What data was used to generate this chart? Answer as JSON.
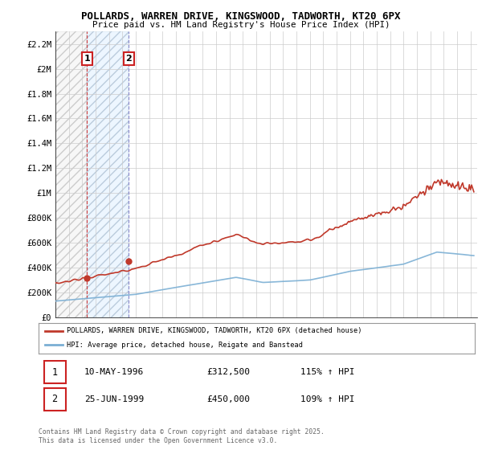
{
  "title": "POLLARDS, WARREN DRIVE, KINGSWOOD, TADWORTH, KT20 6PX",
  "subtitle": "Price paid vs. HM Land Registry's House Price Index (HPI)",
  "ylabel_ticks": [
    "£0",
    "£200K",
    "£400K",
    "£600K",
    "£800K",
    "£1M",
    "£1.2M",
    "£1.4M",
    "£1.6M",
    "£1.8M",
    "£2M",
    "£2.2M"
  ],
  "ylabel_values": [
    0,
    200000,
    400000,
    600000,
    800000,
    1000000,
    1200000,
    1400000,
    1600000,
    1800000,
    2000000,
    2200000
  ],
  "ylim": [
    0,
    2300000
  ],
  "xlim_start": 1994.0,
  "xlim_end": 2025.5,
  "hpi_color": "#7bafd4",
  "price_color": "#c0392b",
  "sale1_x": 1996.36,
  "sale1_y": 312500,
  "sale2_x": 1999.48,
  "sale2_y": 450000,
  "sale1_label": "1",
  "sale2_label": "2",
  "legend_house": "POLLARDS, WARREN DRIVE, KINGSWOOD, TADWORTH, KT20 6PX (detached house)",
  "legend_hpi": "HPI: Average price, detached house, Reigate and Banstead",
  "table_rows": [
    [
      "1",
      "10-MAY-1996",
      "£312,500",
      "115% ↑ HPI"
    ],
    [
      "2",
      "25-JUN-1999",
      "£450,000",
      "109% ↑ HPI"
    ]
  ],
  "footnote": "Contains HM Land Registry data © Crown copyright and database right 2025.\nThis data is licensed under the Open Government Licence v3.0.",
  "background_color": "#ffffff",
  "plot_bg_color": "#ffffff",
  "grid_color": "#cccccc",
  "vline1_color": "#d04040",
  "vline2_color": "#8888cc"
}
